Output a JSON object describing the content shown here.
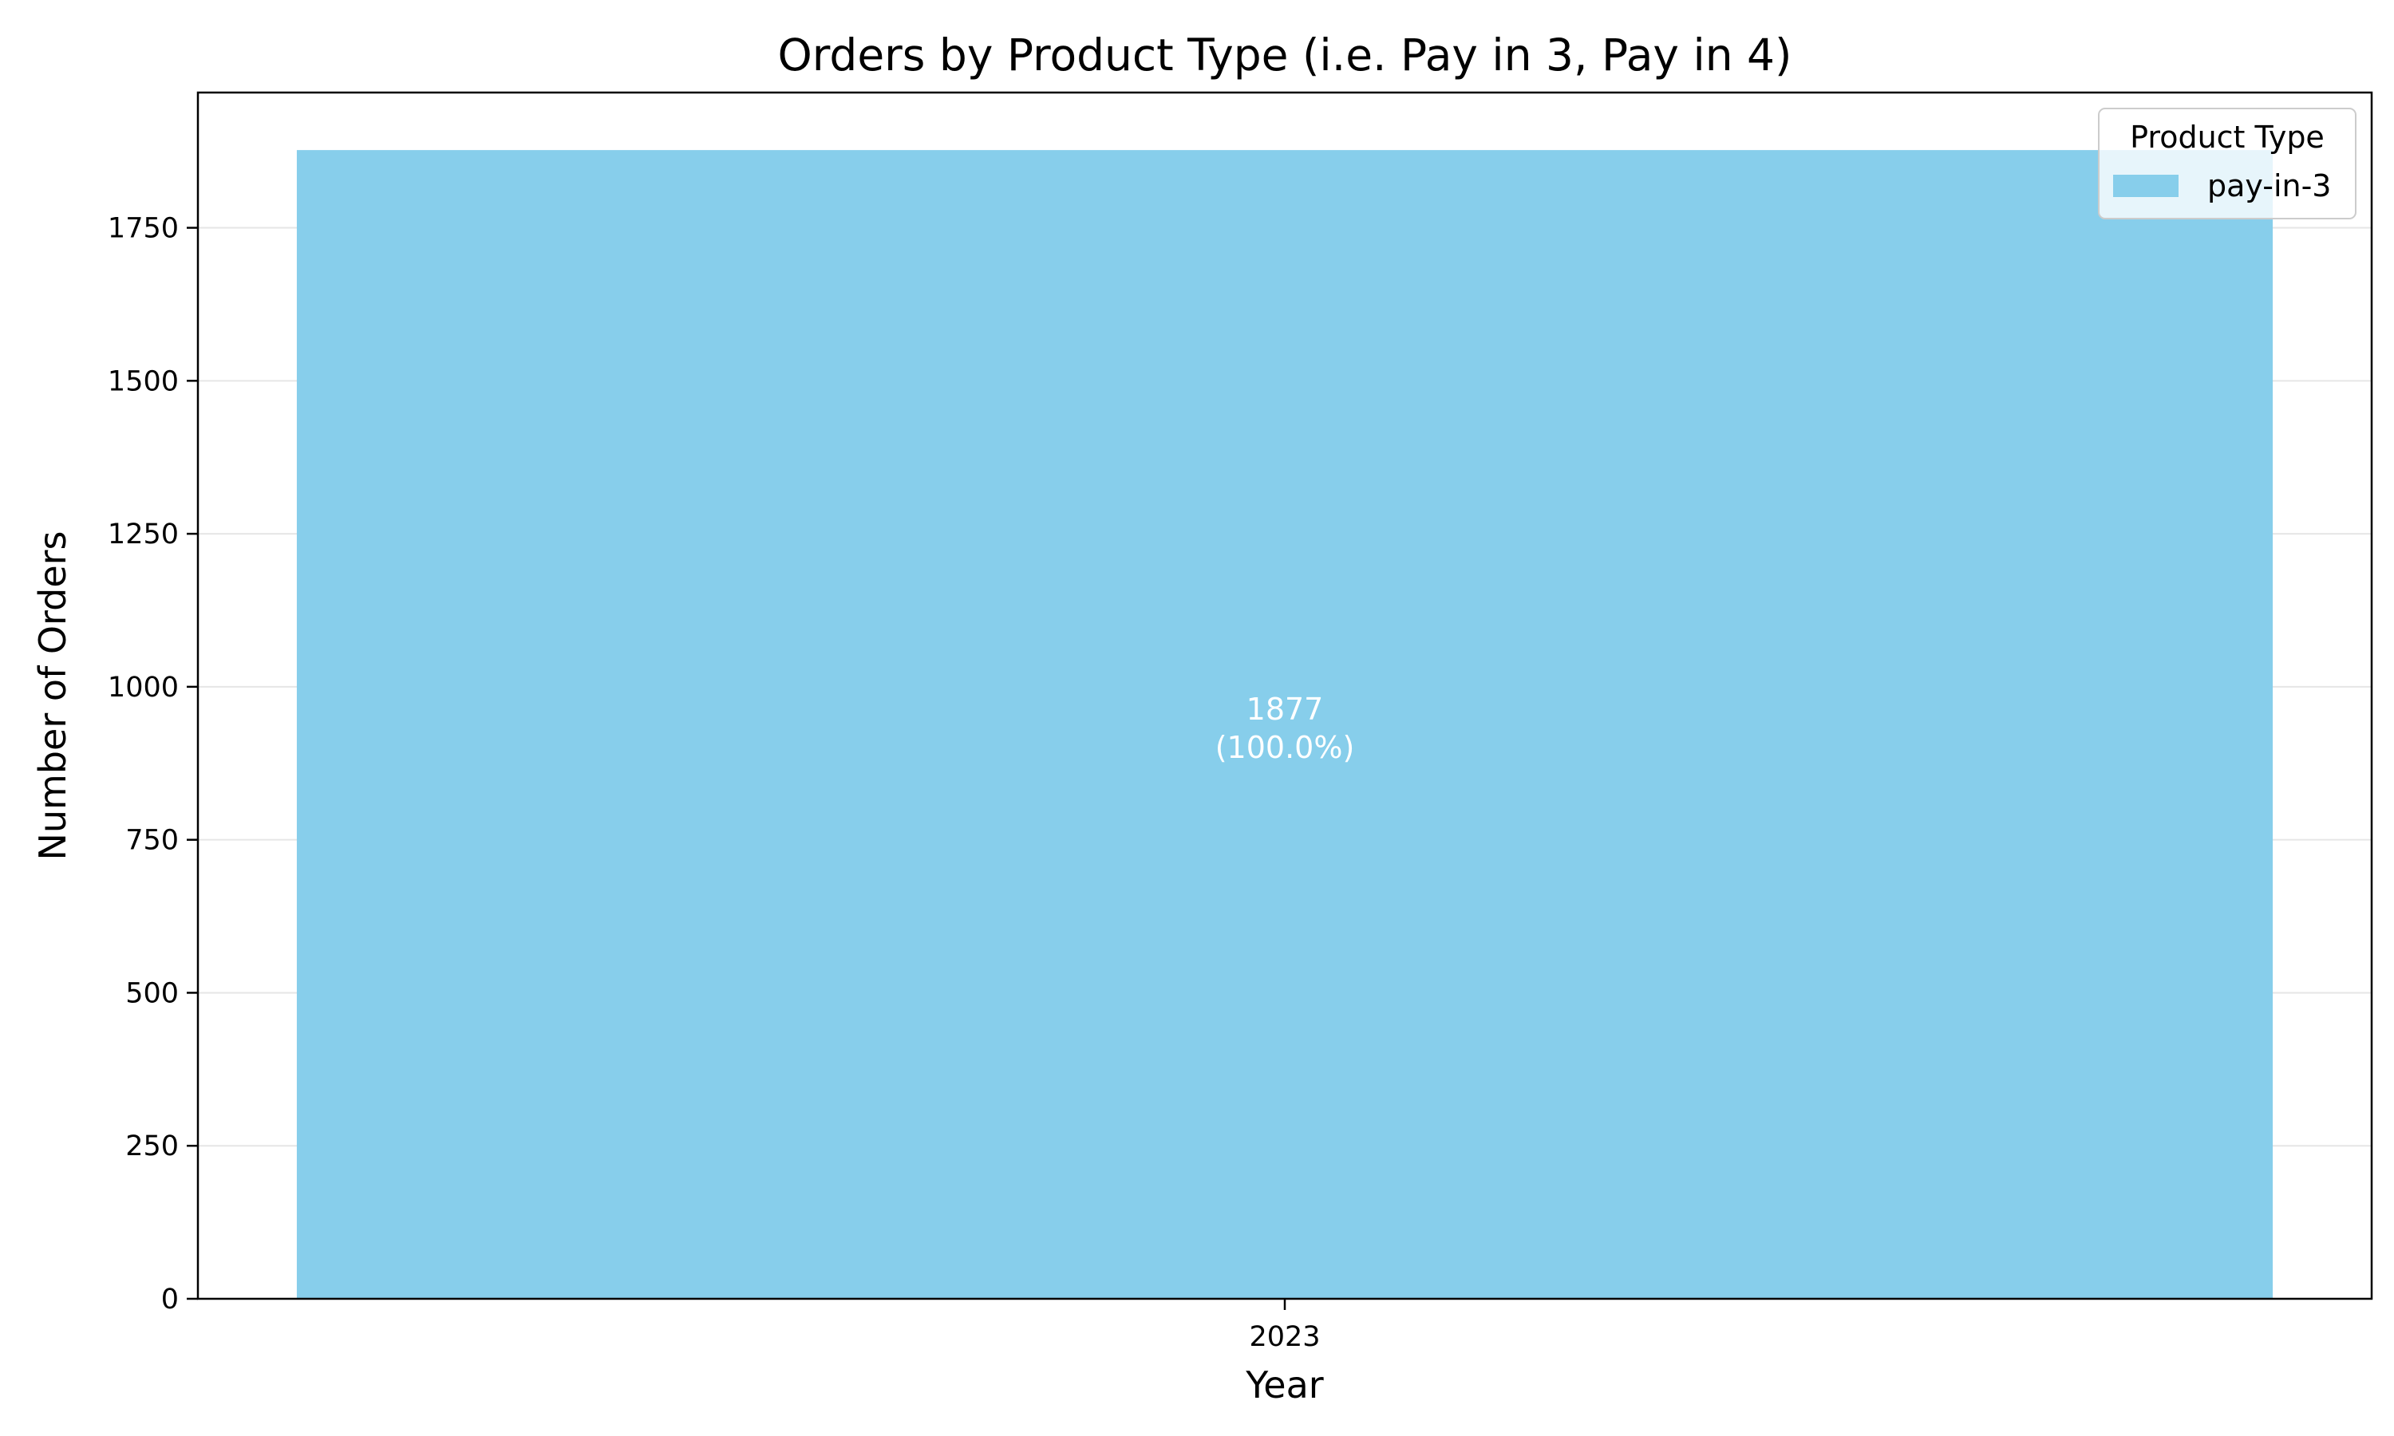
{
  "chart_data": {
    "type": "bar",
    "title": "Orders by Product Type (i.e. Pay in 3, Pay in 4)",
    "xlabel": "Year",
    "ylabel": "Number of Orders",
    "categories": [
      "2023"
    ],
    "series": [
      {
        "name": "pay-in-3",
        "values": [
          1877
        ],
        "percent_labels": [
          "(100.0%)"
        ],
        "color": "#87CEEB"
      }
    ],
    "ylim": [
      0,
      1971
    ],
    "yticks": [
      0,
      250,
      500,
      750,
      1000,
      1250,
      1500,
      1750
    ],
    "grid": true,
    "legend": {
      "title": "Product Type",
      "position": "top-right"
    }
  }
}
